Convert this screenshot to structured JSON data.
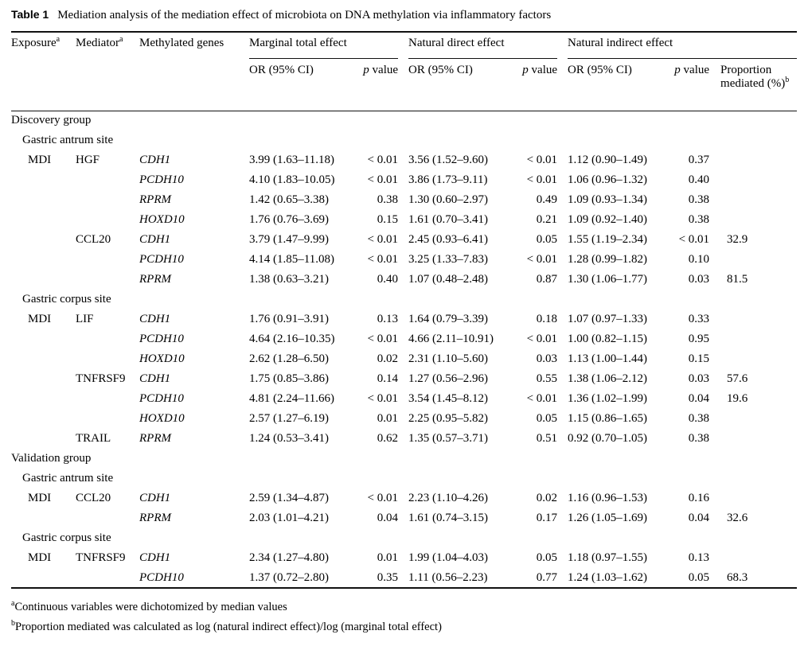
{
  "title": {
    "label": "Table 1",
    "text": "Mediation analysis of the mediation effect of microbiota on DNA methylation via inflammatory factors"
  },
  "header": {
    "exposure": "Exposure",
    "exposure_sup": "a",
    "mediator": "Mediator",
    "mediator_sup": "a",
    "genes": "Methylated genes",
    "groups": [
      {
        "label": "Marginal total effect"
      },
      {
        "label": "Natural direct effect"
      },
      {
        "label": "Natural indirect effect"
      }
    ],
    "or_label": "OR (95% CI)",
    "p_italic": "p",
    "p_rest": " value",
    "prop_text": "Proportion mediated (%)",
    "prop_sup": "b"
  },
  "rows": [
    {
      "type": "section",
      "label": "Discovery group"
    },
    {
      "type": "subsection",
      "label": "Gastric antrum site"
    },
    {
      "type": "data",
      "exposure": "MDI",
      "mediator": "HGF",
      "gene": "CDH1",
      "mte_or": "3.99 (1.63–11.18)",
      "mte_p": "< 0.01",
      "nde_or": "3.56 (1.52–9.60)",
      "nde_p": "< 0.01",
      "nie_or": "1.12 (0.90–1.49)",
      "nie_p": "0.37",
      "prop": ""
    },
    {
      "type": "data",
      "exposure": "",
      "mediator": "",
      "gene": "PCDH10",
      "mte_or": "4.10 (1.83–10.05)",
      "mte_p": "< 0.01",
      "nde_or": "3.86 (1.73–9.11)",
      "nde_p": "< 0.01",
      "nie_or": "1.06 (0.96–1.32)",
      "nie_p": "0.40",
      "prop": ""
    },
    {
      "type": "data",
      "exposure": "",
      "mediator": "",
      "gene": "RPRM",
      "mte_or": "1.42 (0.65–3.38)",
      "mte_p": "0.38",
      "nde_or": "1.30 (0.60–2.97)",
      "nde_p": "0.49",
      "nie_or": "1.09 (0.93–1.34)",
      "nie_p": "0.38",
      "prop": ""
    },
    {
      "type": "data",
      "exposure": "",
      "mediator": "",
      "gene": "HOXD10",
      "mte_or": "1.76 (0.76–3.69)",
      "mte_p": "0.15",
      "nde_or": "1.61 (0.70–3.41)",
      "nde_p": "0.21",
      "nie_or": "1.09 (0.92–1.40)",
      "nie_p": "0.38",
      "prop": ""
    },
    {
      "type": "data",
      "exposure": "",
      "mediator": "CCL20",
      "gene": "CDH1",
      "mte_or": "3.79 (1.47–9.99)",
      "mte_p": "< 0.01",
      "nde_or": "2.45 (0.93–6.41)",
      "nde_p": "0.05",
      "nie_or": "1.55 (1.19–2.34)",
      "nie_p": "< 0.01",
      "prop": "32.9"
    },
    {
      "type": "data",
      "exposure": "",
      "mediator": "",
      "gene": "PCDH10",
      "mte_or": "4.14 (1.85–11.08)",
      "mte_p": "< 0.01",
      "nde_or": "3.25 (1.33–7.83)",
      "nde_p": "< 0.01",
      "nie_or": "1.28 (0.99–1.82)",
      "nie_p": "0.10",
      "prop": ""
    },
    {
      "type": "data",
      "exposure": "",
      "mediator": "",
      "gene": "RPRM",
      "mte_or": "1.38 (0.63–3.21)",
      "mte_p": "0.40",
      "nde_or": "1.07 (0.48–2.48)",
      "nde_p": "0.87",
      "nie_or": "1.30 (1.06–1.77)",
      "nie_p": "0.03",
      "prop": "81.5"
    },
    {
      "type": "subsection",
      "label": "Gastric corpus site"
    },
    {
      "type": "data",
      "exposure": "MDI",
      "mediator": "LIF",
      "gene": "CDH1",
      "mte_or": "1.76 (0.91–3.91)",
      "mte_p": "0.13",
      "nde_or": "1.64 (0.79–3.39)",
      "nde_p": "0.18",
      "nie_or": "1.07 (0.97–1.33)",
      "nie_p": "0.33",
      "prop": ""
    },
    {
      "type": "data",
      "exposure": "",
      "mediator": "",
      "gene": "PCDH10",
      "mte_or": "4.64 (2.16–10.35)",
      "mte_p": "< 0.01",
      "nde_or": "4.66 (2.11–10.91)",
      "nde_p": "< 0.01",
      "nie_or": "1.00 (0.82–1.15)",
      "nie_p": "0.95",
      "prop": ""
    },
    {
      "type": "data",
      "exposure": "",
      "mediator": "",
      "gene": "HOXD10",
      "mte_or": "2.62 (1.28–6.50)",
      "mte_p": "0.02",
      "nde_or": "2.31 (1.10–5.60)",
      "nde_p": "0.03",
      "nie_or": "1.13 (1.00–1.44)",
      "nie_p": "0.15",
      "prop": ""
    },
    {
      "type": "data",
      "exposure": "",
      "mediator": "TNFRSF9",
      "gene": "CDH1",
      "mte_or": "1.75 (0.85–3.86)",
      "mte_p": "0.14",
      "nde_or": "1.27 (0.56–2.96)",
      "nde_p": "0.55",
      "nie_or": "1.38 (1.06–2.12)",
      "nie_p": "0.03",
      "prop": "57.6"
    },
    {
      "type": "data",
      "exposure": "",
      "mediator": "",
      "gene": "PCDH10",
      "mte_or": "4.81 (2.24–11.66)",
      "mte_p": "< 0.01",
      "nde_or": "3.54 (1.45–8.12)",
      "nde_p": "< 0.01",
      "nie_or": "1.36 (1.02–1.99)",
      "nie_p": "0.04",
      "prop": "19.6"
    },
    {
      "type": "data",
      "exposure": "",
      "mediator": "",
      "gene": "HOXD10",
      "mte_or": "2.57 (1.27–6.19)",
      "mte_p": "0.01",
      "nde_or": "2.25 (0.95–5.82)",
      "nde_p": "0.05",
      "nie_or": "1.15 (0.86–1.65)",
      "nie_p": "0.38",
      "prop": ""
    },
    {
      "type": "data",
      "exposure": "",
      "mediator": "TRAIL",
      "gene": "RPRM",
      "mte_or": "1.24 (0.53–3.41)",
      "mte_p": "0.62",
      "nde_or": "1.35 (0.57–3.71)",
      "nde_p": "0.51",
      "nie_or": "0.92 (0.70–1.05)",
      "nie_p": "0.38",
      "prop": ""
    },
    {
      "type": "section",
      "label": "Validation group"
    },
    {
      "type": "subsection",
      "label": "Gastric antrum site"
    },
    {
      "type": "data",
      "exposure": "MDI",
      "mediator": "CCL20",
      "gene": "CDH1",
      "mte_or": "2.59 (1.34–4.87)",
      "mte_p": "< 0.01",
      "nde_or": "2.23 (1.10–4.26)",
      "nde_p": "0.02",
      "nie_or": "1.16 (0.96–1.53)",
      "nie_p": "0.16",
      "prop": ""
    },
    {
      "type": "data",
      "exposure": "",
      "mediator": "",
      "gene": "RPRM",
      "mte_or": "2.03 (1.01–4.21)",
      "mte_p": "0.04",
      "nde_or": "1.61 (0.74–3.15)",
      "nde_p": "0.17",
      "nie_or": "1.26 (1.05–1.69)",
      "nie_p": "0.04",
      "prop": "32.6"
    },
    {
      "type": "subsection",
      "label": "Gastric corpus site"
    },
    {
      "type": "data",
      "exposure": "MDI",
      "mediator": "TNFRSF9",
      "gene": "CDH1",
      "mte_or": "2.34 (1.27–4.80)",
      "mte_p": "0.01",
      "nde_or": "1.99 (1.04–4.03)",
      "nde_p": "0.05",
      "nie_or": "1.18 (0.97–1.55)",
      "nie_p": "0.13",
      "prop": ""
    },
    {
      "type": "data",
      "exposure": "",
      "mediator": "",
      "gene": "PCDH10",
      "mte_or": "1.37 (0.72–2.80)",
      "mte_p": "0.35",
      "nde_or": "1.11 (0.56–2.23)",
      "nde_p": "0.77",
      "nie_or": "1.24 (1.03–1.62)",
      "nie_p": "0.05",
      "prop": "68.3"
    }
  ],
  "footnotes": [
    {
      "sup": "a",
      "text": "Continuous variables were dichotomized by median values"
    },
    {
      "sup": "b",
      "text": "Proportion mediated was calculated as log (natural indirect effect)/log (marginal total effect)"
    }
  ]
}
